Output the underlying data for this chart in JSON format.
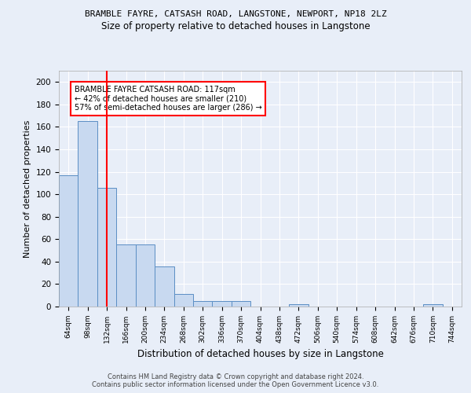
{
  "title1": "BRAMBLE FAYRE, CATSASH ROAD, LANGSTONE, NEWPORT, NP18 2LZ",
  "title2": "Size of property relative to detached houses in Langstone",
  "xlabel": "Distribution of detached houses by size in Langstone",
  "ylabel": "Number of detached properties",
  "categories": [
    "64sqm",
    "98sqm",
    "132sqm",
    "166sqm",
    "200sqm",
    "234sqm",
    "268sqm",
    "302sqm",
    "336sqm",
    "370sqm",
    "404sqm",
    "438sqm",
    "472sqm",
    "506sqm",
    "540sqm",
    "574sqm",
    "608sqm",
    "642sqm",
    "676sqm",
    "710sqm",
    "744sqm"
  ],
  "values": [
    117,
    165,
    106,
    55,
    55,
    36,
    11,
    5,
    5,
    5,
    0,
    0,
    2,
    0,
    0,
    0,
    0,
    0,
    0,
    2,
    0
  ],
  "bar_color": "#c8d9f0",
  "bar_edge_color": "#5b8ec4",
  "red_line_index": 2,
  "ylim": [
    0,
    210
  ],
  "yticks": [
    0,
    20,
    40,
    60,
    80,
    100,
    120,
    140,
    160,
    180,
    200
  ],
  "annotation_line1": "BRAMBLE FAYRE CATSASH ROAD: 117sqm",
  "annotation_line2": "← 42% of detached houses are smaller (210)",
  "annotation_line3": "57% of semi-detached houses are larger (286) →",
  "footer1": "Contains HM Land Registry data © Crown copyright and database right 2024.",
  "footer2": "Contains public sector information licensed under the Open Government Licence v3.0.",
  "bg_color": "#e8eef8",
  "plot_bg_color": "#e8eef8",
  "grid_color": "#ffffff"
}
